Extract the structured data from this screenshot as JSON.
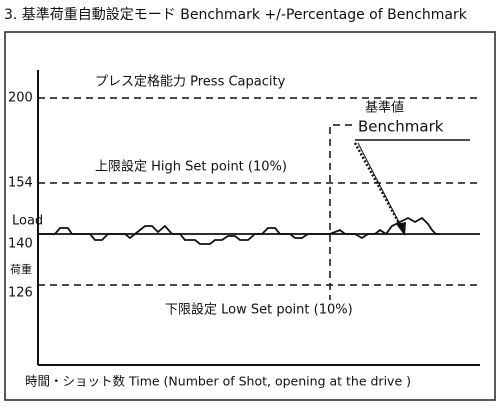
{
  "title": "3. 基準荷重自動設定モード Benchmark +/-Percentage of Benchmark",
  "annotations": {
    "capacity": "プレス定格能力 Press Capacity",
    "high": "上限設定 High Set point (10%)",
    "low": "下限設定 Low Set point (10%)",
    "benchmark_jp": "基準値",
    "benchmark": "Benchmark"
  },
  "axis": {
    "y_label": "Load",
    "y_label_jp": "荷重",
    "x_label": "時間・ショット数 Time (Number of Shot, opening at the drive )",
    "levels": [
      "200",
      "154",
      "140",
      "126"
    ]
  }
}
